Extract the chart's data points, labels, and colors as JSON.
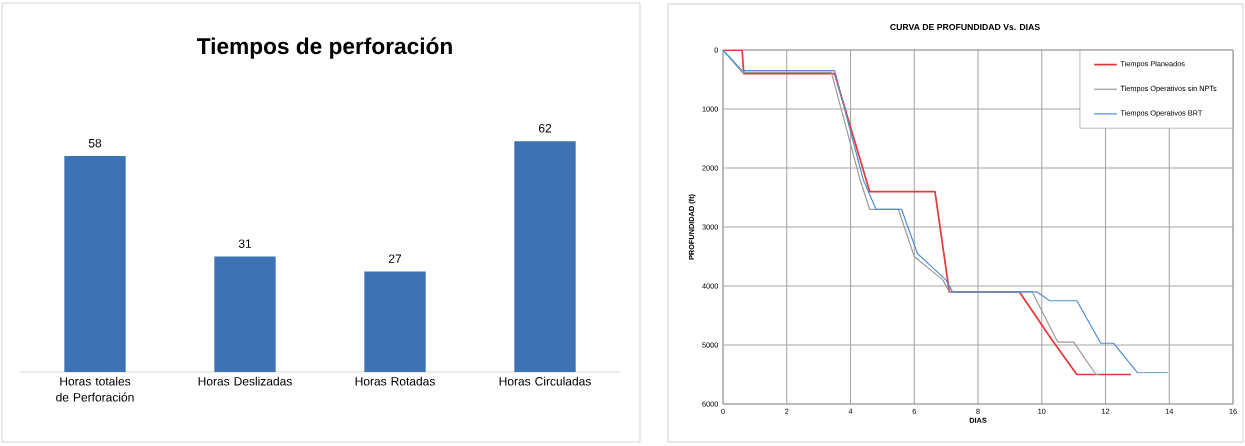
{
  "chart_data": [
    {
      "type": "bar",
      "title": "Tiempos de perforación",
      "categories": [
        "Horas totales de Perforación",
        "Horas Deslizadas",
        "Horas Rotadas",
        "Horas Circuladas"
      ],
      "values": [
        58,
        31,
        27,
        62
      ],
      "color": "#3d72b4",
      "data_labels": true
    },
    {
      "type": "line",
      "title": "CURVA DE PROFUNDIDAD Vs. DIAS",
      "xlabel": "DIAS",
      "ylabel": "PROFUNDIDAD (ft)",
      "xlim": [
        0,
        16
      ],
      "ylim": [
        6000,
        0
      ],
      "xticks": [
        0,
        2,
        4,
        6,
        8,
        10,
        12,
        14,
        16
      ],
      "yticks": [
        0,
        1000,
        2000,
        3000,
        4000,
        5000,
        6000
      ],
      "grid": true,
      "legend": "top right",
      "series": [
        {
          "name": "Tiempos  Planeados",
          "color": "#e8383d",
          "x": [
            0,
            0.6,
            0.65,
            3.5,
            4.6,
            6.65,
            7.1,
            9.3,
            10.3,
            11.1,
            12.8
          ],
          "values": [
            0,
            0,
            400,
            400,
            2400,
            2400,
            4100,
            4100,
            4900,
            5500,
            5500
          ]
        },
        {
          "name": "Tiempos Operativos sin NPTs",
          "color": "#9a9a9a",
          "x": [
            0,
            0.6,
            3.4,
            4.3,
            4.6,
            5.5,
            6.0,
            6.9,
            7.1,
            9.7,
            10.5,
            11.0,
            11.7,
            11.8
          ],
          "values": [
            0,
            380,
            380,
            2200,
            2700,
            2700,
            3500,
            3900,
            4100,
            4100,
            4950,
            4950,
            5500,
            5500
          ]
        },
        {
          "name": "Tiempos Operativos BRT",
          "color": "#4f8fd0",
          "x": [
            0,
            0.6,
            3.5,
            4.4,
            4.8,
            5.6,
            6.1,
            7.0,
            7.2,
            9.85,
            10.25,
            11.1,
            11.85,
            12.25,
            13.0,
            13.95
          ],
          "values": [
            0,
            350,
            350,
            2200,
            2700,
            2700,
            3450,
            3900,
            4100,
            4100,
            4250,
            4250,
            4970,
            4970,
            5470,
            5470
          ]
        }
      ]
    }
  ]
}
